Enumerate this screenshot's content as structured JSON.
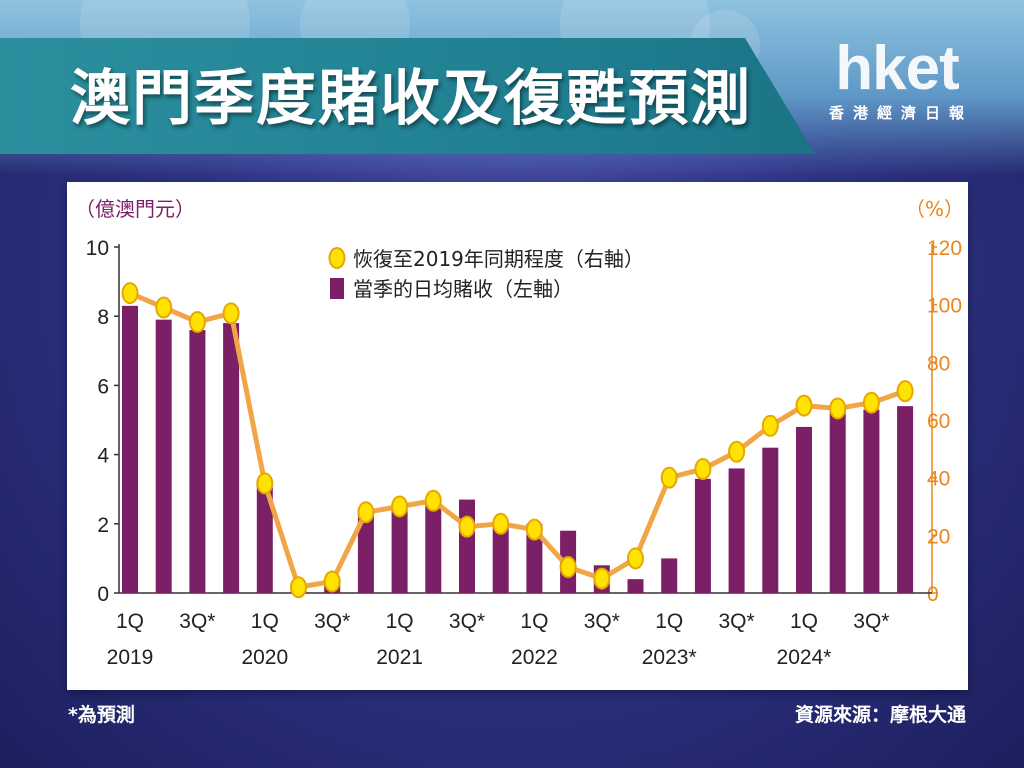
{
  "header": {
    "title": "澳門季度賭收及復甦預測",
    "logo": {
      "main": "hket",
      "sub": "香港經濟日報"
    }
  },
  "footer": {
    "note": "*為預測",
    "source": "資源來源：摩根大通"
  },
  "colors": {
    "bar": "#7b1f66",
    "line": "#f2a546",
    "marker": "#ffe200",
    "marker_stroke": "#e6a700",
    "axis_right": "#e8871e",
    "left_unit": "#7b1f66"
  },
  "chart_data": {
    "type": "bar+line",
    "left_axis": {
      "unit_label": "（億澳門元）",
      "range": [
        0,
        10
      ],
      "ticks": [
        0,
        2,
        4,
        6,
        8,
        10
      ]
    },
    "right_axis": {
      "unit_label": "（%）",
      "range": [
        0,
        120
      ],
      "ticks": [
        0,
        20,
        40,
        60,
        80,
        100,
        120
      ]
    },
    "legend": [
      {
        "name": "恢復至2019年同期程度（右軸）",
        "type": "line"
      },
      {
        "name": "當季的日均賭收（左軸）",
        "type": "bar"
      }
    ],
    "quarters": [
      "1Q2019",
      "2Q2019",
      "3Q2019",
      "4Q2019",
      "1Q2020",
      "2Q2020",
      "3Q2020",
      "4Q2020",
      "1Q2021",
      "2Q2021",
      "3Q2021",
      "4Q2021",
      "1Q2022",
      "2Q2022",
      "3Q2022",
      "4Q2022",
      "1Q2023",
      "2Q2023",
      "3Q2023",
      "4Q2023",
      "1Q2024",
      "2Q2024",
      "3Q2024",
      "4Q2024"
    ],
    "x_tick_labels": [
      {
        "index": 0,
        "label": "1Q"
      },
      {
        "index": 2,
        "label": "3Q*"
      },
      {
        "index": 4,
        "label": "1Q"
      },
      {
        "index": 6,
        "label": "3Q*"
      },
      {
        "index": 8,
        "label": "1Q"
      },
      {
        "index": 10,
        "label": "3Q*"
      },
      {
        "index": 12,
        "label": "1Q"
      },
      {
        "index": 14,
        "label": "3Q*"
      },
      {
        "index": 16,
        "label": "1Q"
      },
      {
        "index": 18,
        "label": "3Q*"
      },
      {
        "index": 20,
        "label": "1Q"
      },
      {
        "index": 22,
        "label": "3Q*"
      }
    ],
    "year_labels": [
      {
        "index": 0,
        "label": "2019"
      },
      {
        "index": 4,
        "label": "2020"
      },
      {
        "index": 8,
        "label": "2021"
      },
      {
        "index": 12,
        "label": "2022"
      },
      {
        "index": 16,
        "label": "2023*"
      },
      {
        "index": 20,
        "label": "2024*"
      }
    ],
    "series": [
      {
        "name": "當季的日均賭收（左軸）",
        "axis": "left",
        "type": "bar",
        "values": [
          8.3,
          7.9,
          7.6,
          7.8,
          3.2,
          0.2,
          0.4,
          2.3,
          2.4,
          2.6,
          2.7,
          1.9,
          2.0,
          1.8,
          0.8,
          0.4,
          1.0,
          3.3,
          3.6,
          4.2,
          4.8,
          5.4,
          5.3,
          5.4
        ]
      },
      {
        "name": "恢復至2019年同期程度（右軸）",
        "axis": "right",
        "type": "line",
        "values": [
          104,
          99,
          94,
          97,
          38,
          2,
          4,
          28,
          30,
          32,
          23,
          24,
          22,
          9,
          5,
          12,
          40,
          43,
          49,
          58,
          65,
          64,
          66,
          70
        ]
      }
    ]
  }
}
